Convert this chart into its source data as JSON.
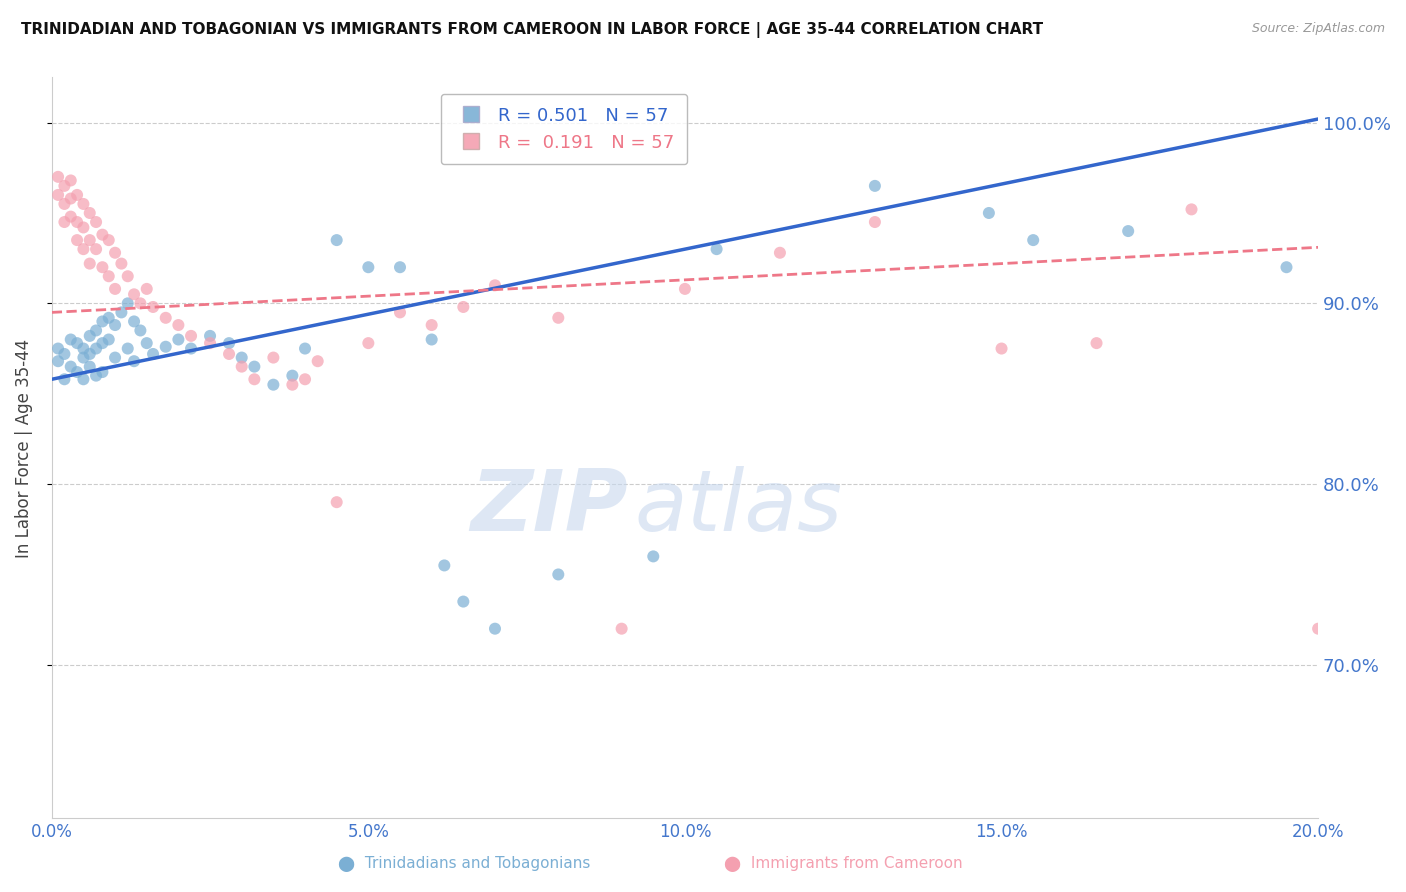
{
  "title": "TRINIDADIAN AND TOBAGONIAN VS IMMIGRANTS FROM CAMEROON IN LABOR FORCE | AGE 35-44 CORRELATION CHART",
  "source": "Source: ZipAtlas.com",
  "ylabel": "In Labor Force | Age 35-44",
  "x_min": 0.0,
  "x_max": 0.2,
  "y_min": 0.615,
  "y_max": 1.025,
  "yticks": [
    0.7,
    0.8,
    0.9,
    1.0
  ],
  "xticks": [
    0.0,
    0.05,
    0.1,
    0.15,
    0.2
  ],
  "blue_color": "#7BAFD4",
  "pink_color": "#F4A0B0",
  "blue_line_color": "#3366CC",
  "pink_line_color": "#EE7788",
  "scatter_alpha": 0.7,
  "scatter_size": 75,
  "blue_scatter": [
    [
      0.001,
      0.875
    ],
    [
      0.001,
      0.868
    ],
    [
      0.002,
      0.872
    ],
    [
      0.002,
      0.858
    ],
    [
      0.003,
      0.88
    ],
    [
      0.003,
      0.865
    ],
    [
      0.004,
      0.878
    ],
    [
      0.004,
      0.862
    ],
    [
      0.005,
      0.875
    ],
    [
      0.005,
      0.87
    ],
    [
      0.005,
      0.858
    ],
    [
      0.006,
      0.882
    ],
    [
      0.006,
      0.872
    ],
    [
      0.006,
      0.865
    ],
    [
      0.007,
      0.885
    ],
    [
      0.007,
      0.875
    ],
    [
      0.007,
      0.86
    ],
    [
      0.008,
      0.89
    ],
    [
      0.008,
      0.878
    ],
    [
      0.008,
      0.862
    ],
    [
      0.009,
      0.892
    ],
    [
      0.009,
      0.88
    ],
    [
      0.01,
      0.888
    ],
    [
      0.01,
      0.87
    ],
    [
      0.011,
      0.895
    ],
    [
      0.012,
      0.9
    ],
    [
      0.012,
      0.875
    ],
    [
      0.013,
      0.89
    ],
    [
      0.013,
      0.868
    ],
    [
      0.014,
      0.885
    ],
    [
      0.015,
      0.878
    ],
    [
      0.016,
      0.872
    ],
    [
      0.018,
      0.876
    ],
    [
      0.02,
      0.88
    ],
    [
      0.022,
      0.875
    ],
    [
      0.025,
      0.882
    ],
    [
      0.028,
      0.878
    ],
    [
      0.03,
      0.87
    ],
    [
      0.032,
      0.865
    ],
    [
      0.035,
      0.855
    ],
    [
      0.038,
      0.86
    ],
    [
      0.04,
      0.875
    ],
    [
      0.045,
      0.935
    ],
    [
      0.05,
      0.92
    ],
    [
      0.055,
      0.92
    ],
    [
      0.06,
      0.88
    ],
    [
      0.062,
      0.755
    ],
    [
      0.065,
      0.735
    ],
    [
      0.07,
      0.72
    ],
    [
      0.08,
      0.75
    ],
    [
      0.095,
      0.76
    ],
    [
      0.105,
      0.93
    ],
    [
      0.13,
      0.965
    ],
    [
      0.148,
      0.95
    ],
    [
      0.155,
      0.935
    ],
    [
      0.17,
      0.94
    ],
    [
      0.195,
      0.92
    ]
  ],
  "pink_scatter": [
    [
      0.001,
      0.97
    ],
    [
      0.001,
      0.96
    ],
    [
      0.002,
      0.965
    ],
    [
      0.002,
      0.955
    ],
    [
      0.002,
      0.945
    ],
    [
      0.003,
      0.968
    ],
    [
      0.003,
      0.958
    ],
    [
      0.003,
      0.948
    ],
    [
      0.004,
      0.96
    ],
    [
      0.004,
      0.945
    ],
    [
      0.004,
      0.935
    ],
    [
      0.005,
      0.955
    ],
    [
      0.005,
      0.942
    ],
    [
      0.005,
      0.93
    ],
    [
      0.006,
      0.95
    ],
    [
      0.006,
      0.935
    ],
    [
      0.006,
      0.922
    ],
    [
      0.007,
      0.945
    ],
    [
      0.007,
      0.93
    ],
    [
      0.008,
      0.938
    ],
    [
      0.008,
      0.92
    ],
    [
      0.009,
      0.935
    ],
    [
      0.009,
      0.915
    ],
    [
      0.01,
      0.928
    ],
    [
      0.01,
      0.908
    ],
    [
      0.011,
      0.922
    ],
    [
      0.012,
      0.915
    ],
    [
      0.013,
      0.905
    ],
    [
      0.014,
      0.9
    ],
    [
      0.015,
      0.908
    ],
    [
      0.016,
      0.898
    ],
    [
      0.018,
      0.892
    ],
    [
      0.02,
      0.888
    ],
    [
      0.022,
      0.882
    ],
    [
      0.025,
      0.878
    ],
    [
      0.028,
      0.872
    ],
    [
      0.03,
      0.865
    ],
    [
      0.032,
      0.858
    ],
    [
      0.035,
      0.87
    ],
    [
      0.038,
      0.855
    ],
    [
      0.04,
      0.858
    ],
    [
      0.042,
      0.868
    ],
    [
      0.045,
      0.79
    ],
    [
      0.05,
      0.878
    ],
    [
      0.055,
      0.895
    ],
    [
      0.06,
      0.888
    ],
    [
      0.065,
      0.898
    ],
    [
      0.07,
      0.91
    ],
    [
      0.08,
      0.892
    ],
    [
      0.09,
      0.72
    ],
    [
      0.1,
      0.908
    ],
    [
      0.115,
      0.928
    ],
    [
      0.13,
      0.945
    ],
    [
      0.15,
      0.875
    ],
    [
      0.165,
      0.878
    ],
    [
      0.18,
      0.952
    ],
    [
      0.2,
      0.72
    ]
  ],
  "watermark_zip": "ZIP",
  "watermark_atlas": "atlas",
  "axis_color": "#4477CC",
  "grid_color": "#CCCCCC",
  "blue_line_intercept": 0.858,
  "blue_line_slope": 0.72,
  "pink_line_intercept": 0.895,
  "pink_line_slope": 0.18
}
